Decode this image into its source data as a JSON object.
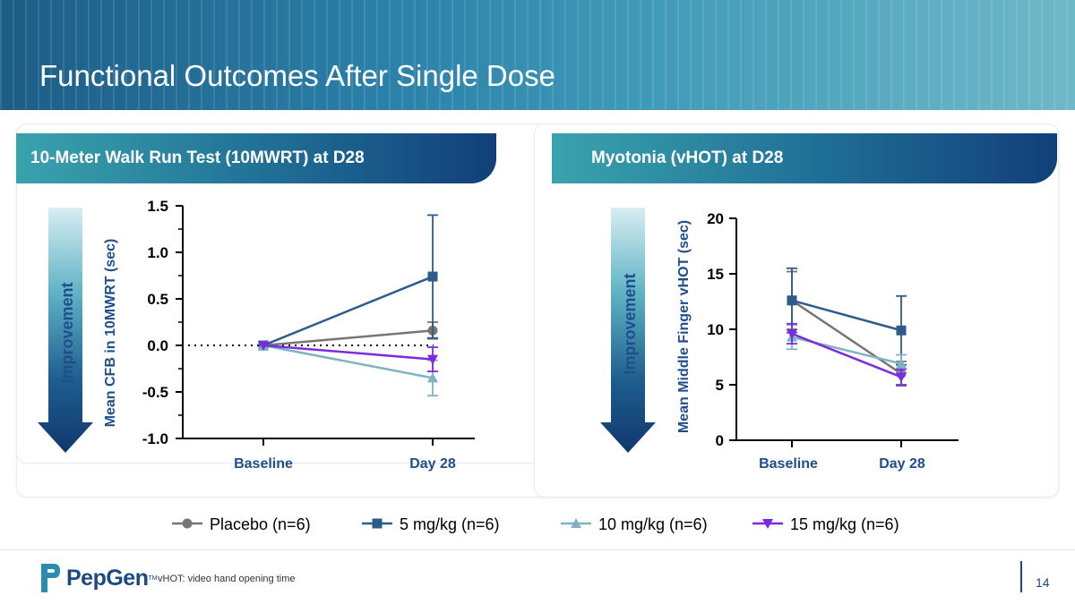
{
  "slide": {
    "title": "Functional Outcomes After Single Dose",
    "page_number": "14",
    "footnote": "vHOT: video hand opening time",
    "logo_text": "PepGen",
    "logo_tm": "TM"
  },
  "colors": {
    "placebo": "#767676",
    "mg5": "#2d5b8c",
    "mg10": "#7fb3c3",
    "mg15": "#7a2be2",
    "axis": "#000000",
    "label_blue": "#1f4e8c"
  },
  "legend": [
    {
      "label": "Placebo (n=6)",
      "marker": "circle",
      "color_key": "placebo"
    },
    {
      "label": "5 mg/kg (n=6)",
      "marker": "square",
      "color_key": "mg5"
    },
    {
      "label": "10 mg/kg (n=6)",
      "marker": "triangle-up",
      "color_key": "mg10"
    },
    {
      "label": "15 mg/kg (n=6)",
      "marker": "triangle-down",
      "color_key": "mg15"
    }
  ],
  "chart_data": [
    {
      "type": "line",
      "panel_title": "10-Meter Walk Run Test (10MWRT) at D28",
      "improvement_label": "Improvement",
      "categories": [
        "Baseline",
        "Day 28"
      ],
      "ylabel": "Mean CFB in 10MWRT (sec)",
      "ylim": [
        -1.0,
        1.5
      ],
      "yticks": [
        "1.5",
        "1.0",
        "0.5",
        "0.0",
        "-0.5",
        "-1.0"
      ],
      "ytick_values": [
        1.5,
        1.0,
        0.5,
        0.0,
        -0.5,
        -1.0
      ],
      "reference_line": 0.0,
      "series": [
        {
          "name": "Placebo (n=6)",
          "color_key": "placebo",
          "marker": "circle",
          "values": [
            0.0,
            0.16
          ],
          "err": [
            0,
            0.09
          ]
        },
        {
          "name": "5 mg/kg (n=6)",
          "color_key": "mg5",
          "marker": "square",
          "values": [
            0.0,
            0.74
          ],
          "err": [
            0,
            0.66
          ]
        },
        {
          "name": "10 mg/kg (n=6)",
          "color_key": "mg10",
          "marker": "triangle-up",
          "values": [
            0.0,
            -0.35
          ],
          "err": [
            0,
            0.19
          ]
        },
        {
          "name": "15 mg/kg (n=6)",
          "color_key": "mg15",
          "marker": "triangle-down",
          "values": [
            0.0,
            -0.15
          ],
          "err": [
            0,
            0.13
          ]
        }
      ]
    },
    {
      "type": "line",
      "panel_title": "Myotonia (vHOT) at D28",
      "improvement_label": "Improvement",
      "categories": [
        "Baseline",
        "Day 28"
      ],
      "ylabel": "Mean Middle Finger vHOT (sec)",
      "ylim": [
        0,
        20
      ],
      "yticks": [
        "20",
        "15",
        "10",
        "5",
        "0"
      ],
      "ytick_values": [
        20,
        15,
        10,
        5,
        0
      ],
      "series": [
        {
          "name": "Placebo (n=6)",
          "color_key": "placebo",
          "marker": "circle",
          "values": [
            12.6,
            6.0
          ],
          "err": [
            2.6,
            1.1
          ]
        },
        {
          "name": "5 mg/kg (n=6)",
          "color_key": "mg5",
          "marker": "square",
          "values": [
            12.6,
            9.9
          ],
          "err": [
            2.9,
            3.1
          ]
        },
        {
          "name": "10 mg/kg (n=6)",
          "color_key": "mg10",
          "marker": "triangle-up",
          "values": [
            9.3,
            6.9
          ],
          "err": [
            1.1,
            0.8
          ]
        },
        {
          "name": "15 mg/kg (n=6)",
          "color_key": "mg15",
          "marker": "triangle-down",
          "values": [
            9.6,
            5.7
          ],
          "err": [
            0.9,
            0.7
          ]
        }
      ]
    }
  ]
}
